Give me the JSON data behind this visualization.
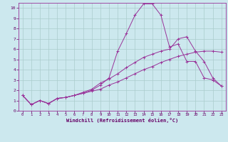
{
  "xlabel": "Windchill (Refroidissement éolien,°C)",
  "bg_color": "#cce8ee",
  "grid_color": "#aacccc",
  "line_color": "#993399",
  "xlim": [
    -0.5,
    23.5
  ],
  "ylim": [
    0,
    10.5
  ],
  "xticks": [
    0,
    1,
    2,
    3,
    4,
    5,
    6,
    7,
    8,
    9,
    10,
    11,
    12,
    13,
    14,
    15,
    16,
    17,
    18,
    19,
    20,
    21,
    22,
    23
  ],
  "yticks": [
    0,
    1,
    2,
    3,
    4,
    5,
    6,
    7,
    8,
    9,
    10
  ],
  "line1_x": [
    0,
    1,
    2,
    3,
    4,
    5,
    6,
    7,
    8,
    9,
    10,
    11,
    12,
    13,
    14,
    15,
    16,
    17,
    18,
    19,
    20,
    21,
    22,
    23
  ],
  "line1_y": [
    1.5,
    0.6,
    1.0,
    0.7,
    1.2,
    1.3,
    1.5,
    1.7,
    1.9,
    2.1,
    2.5,
    2.8,
    3.2,
    3.6,
    4.0,
    4.3,
    4.7,
    5.0,
    5.3,
    5.5,
    5.7,
    5.8,
    5.8,
    5.7
  ],
  "line2_x": [
    0,
    1,
    2,
    3,
    4,
    5,
    6,
    7,
    8,
    9,
    10,
    11,
    12,
    13,
    14,
    15,
    16,
    17,
    18,
    19,
    20,
    21,
    22,
    23
  ],
  "line2_y": [
    1.5,
    0.6,
    1.0,
    0.7,
    1.2,
    1.3,
    1.5,
    1.7,
    2.0,
    2.5,
    3.2,
    5.8,
    7.5,
    9.3,
    10.4,
    10.4,
    9.3,
    6.2,
    6.5,
    4.8,
    4.8,
    3.2,
    3.0,
    2.4
  ],
  "line3_x": [
    0,
    1,
    2,
    3,
    4,
    5,
    6,
    7,
    8,
    9,
    10,
    11,
    12,
    13,
    14,
    15,
    16,
    17,
    18,
    19,
    20,
    21,
    22,
    23
  ],
  "line3_y": [
    1.5,
    0.6,
    1.0,
    0.7,
    1.2,
    1.3,
    1.5,
    1.8,
    2.1,
    2.7,
    3.1,
    3.6,
    4.2,
    4.7,
    5.2,
    5.5,
    5.8,
    6.0,
    7.0,
    7.2,
    5.8,
    4.8,
    3.2,
    2.4
  ]
}
